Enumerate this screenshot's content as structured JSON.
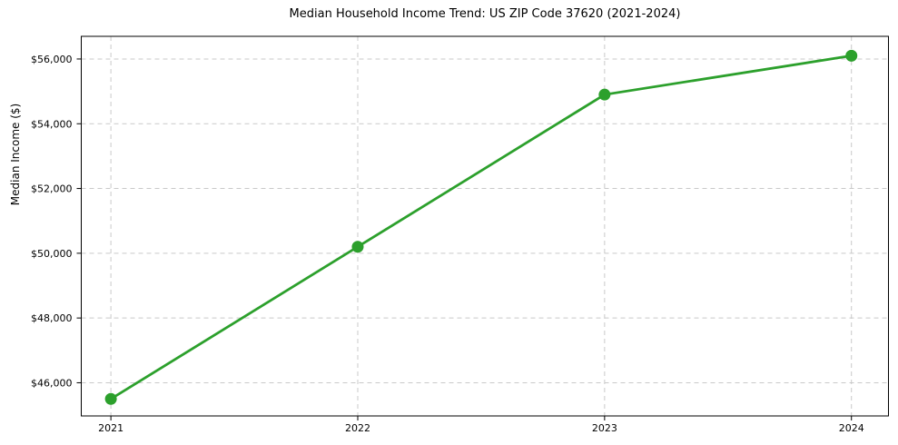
{
  "chart_data": {
    "type": "line",
    "title": "Median Household Income Trend: US ZIP Code 37620 (2021-2024)",
    "xlabel": "",
    "ylabel": "Median Income ($)",
    "x": [
      2021,
      2022,
      2023,
      2024
    ],
    "x_tick_labels": [
      "2021",
      "2022",
      "2023",
      "2024"
    ],
    "series": [
      {
        "name": "median-household-income",
        "values": [
          45500,
          50200,
          54900,
          56100
        ],
        "color": "#2ca02c",
        "marker": "circle"
      }
    ],
    "y_ticks": [
      46000,
      48000,
      50000,
      52000,
      54000,
      56000
    ],
    "y_tick_labels": [
      "$46,000",
      "$48,000",
      "$50,000",
      "$52,000",
      "$54,000",
      "$56,000"
    ],
    "xlim": [
      2020.88,
      2024.15
    ],
    "ylim": [
      44975,
      56700
    ],
    "grid": {
      "visible": true,
      "style": "dashed",
      "axes": "both",
      "color": "#c9c9c9"
    },
    "legend": {
      "visible": false
    },
    "colors": {
      "background": "#ffffff",
      "spine": "#000000",
      "tick_label": "#000000",
      "title": "#000000"
    }
  }
}
